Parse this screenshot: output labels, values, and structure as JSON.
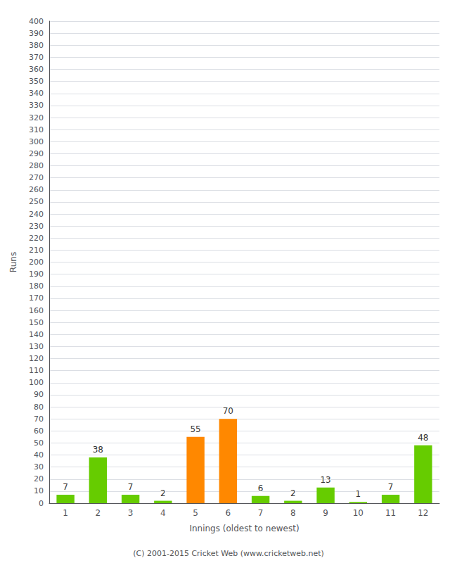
{
  "chart_data": {
    "type": "bar",
    "xlabel": "Innings (oldest to newest)",
    "ylabel": "Runs",
    "categories": [
      "1",
      "2",
      "3",
      "4",
      "5",
      "6",
      "7",
      "8",
      "9",
      "10",
      "11",
      "12"
    ],
    "values": [
      7,
      38,
      7,
      2,
      55,
      70,
      6,
      2,
      13,
      1,
      7,
      48
    ],
    "colors": [
      "#66cc00",
      "#66cc00",
      "#66cc00",
      "#66cc00",
      "#ff8800",
      "#ff8800",
      "#66cc00",
      "#66cc00",
      "#66cc00",
      "#66cc00",
      "#66cc00",
      "#66cc00"
    ],
    "ylim": [
      0,
      400
    ],
    "yticks": [
      0,
      10,
      20,
      30,
      40,
      50,
      60,
      70,
      80,
      90,
      100,
      110,
      120,
      130,
      140,
      150,
      160,
      170,
      180,
      190,
      200,
      210,
      220,
      230,
      240,
      250,
      260,
      270,
      280,
      290,
      300,
      310,
      320,
      330,
      340,
      350,
      360,
      370,
      380,
      390,
      400
    ],
    "grid": true,
    "data_labels": true,
    "footer": "(C) 2001-2015 Cricket Web (www.cricketweb.net)"
  }
}
